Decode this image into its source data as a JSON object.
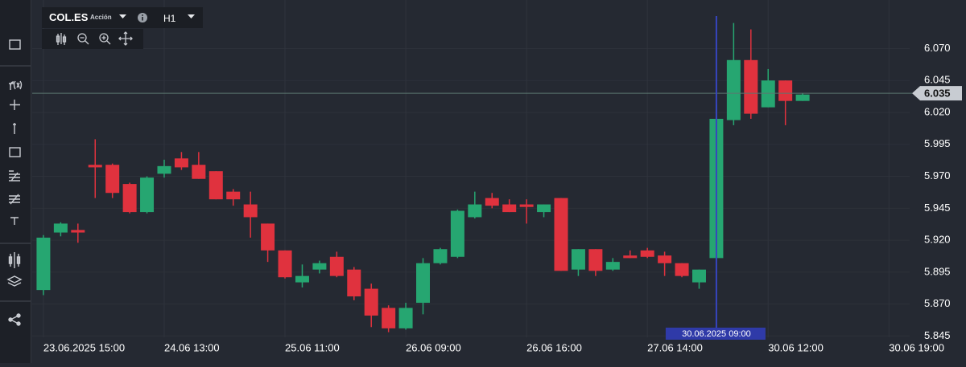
{
  "toolbar": {
    "symbol": "COL.ES",
    "asset_type": "Acción",
    "timeframe": "H1"
  },
  "chart_data": {
    "type": "candlestick",
    "open": [
      5.881,
      5.926,
      5.928,
      5.979,
      5.979,
      5.964,
      5.942,
      5.972,
      5.984,
      5.979,
      5.974,
      5.958,
      5.948,
      5.933,
      5.912,
      5.887,
      5.897,
      5.907,
      5.897,
      5.882,
      5.867,
      5.851,
      5.871,
      5.902,
      5.907,
      5.938,
      5.953,
      5.948,
      5.948,
      5.942,
      5.953,
      5.897,
      5.913,
      5.897,
      5.908,
      5.912,
      5.908,
      5.902,
      5.887,
      5.906,
      6.014,
      6.061,
      6.024,
      6.045,
      6.029
    ],
    "high": [
      5.924,
      5.934,
      5.933,
      5.999,
      5.98,
      5.965,
      5.97,
      5.983,
      5.989,
      5.989,
      5.974,
      5.96,
      5.958,
      5.933,
      5.912,
      5.901,
      5.904,
      5.911,
      5.899,
      5.886,
      5.869,
      5.871,
      5.906,
      5.914,
      5.944,
      5.958,
      5.957,
      5.952,
      5.952,
      5.948,
      5.953,
      5.913,
      5.913,
      5.906,
      5.912,
      5.914,
      5.911,
      5.902,
      5.897,
      6.026,
      6.09,
      6.085,
      6.054,
      6.045,
      6.035
    ],
    "low": [
      5.877,
      5.923,
      5.918,
      5.953,
      5.953,
      5.941,
      5.941,
      5.969,
      5.975,
      5.968,
      5.952,
      5.947,
      5.922,
      5.903,
      5.89,
      5.883,
      5.894,
      5.891,
      5.873,
      5.852,
      5.848,
      5.85,
      5.862,
      5.901,
      5.906,
      5.937,
      5.945,
      5.942,
      5.933,
      5.938,
      5.896,
      5.892,
      5.892,
      5.896,
      5.906,
      5.906,
      5.892,
      5.891,
      5.882,
      5.906,
      6.01,
      6.015,
      6.024,
      6.01,
      6.029
    ],
    "close": [
      5.922,
      5.933,
      5.926,
      5.977,
      5.957,
      5.942,
      5.969,
      5.978,
      5.977,
      5.968,
      5.952,
      5.952,
      5.938,
      5.912,
      5.891,
      5.892,
      5.902,
      5.892,
      5.876,
      5.861,
      5.851,
      5.867,
      5.902,
      5.913,
      5.943,
      5.948,
      5.947,
      5.942,
      5.946,
      5.948,
      5.896,
      5.913,
      5.896,
      5.903,
      5.906,
      5.907,
      5.902,
      5.892,
      5.897,
      6.015,
      6.061,
      6.019,
      6.045,
      6.029,
      6.034
    ],
    "up_color": "#26a671",
    "down_color": "#e0323e",
    "ylim": [
      5.844,
      6.108
    ],
    "yticks": [
      {
        "value": 5.845,
        "label": "5.845"
      },
      {
        "value": 5.87,
        "label": "5.870"
      },
      {
        "value": 5.895,
        "label": "5.895"
      },
      {
        "value": 5.92,
        "label": "5.920"
      },
      {
        "value": 5.945,
        "label": "5.945"
      },
      {
        "value": 5.97,
        "label": "5.970"
      },
      {
        "value": 5.995,
        "label": "5.995"
      },
      {
        "value": 6.02,
        "label": "6.020"
      },
      {
        "value": 6.045,
        "label": "6.045"
      },
      {
        "value": 6.07,
        "label": "6.070"
      }
    ],
    "xlim": [
      -0.65,
      50.2
    ],
    "xticks": [
      {
        "value": 0,
        "label": "23.06.2025 15:00"
      },
      {
        "value": 7,
        "label": "24.06 13:00"
      },
      {
        "value": 14,
        "label": "25.06 11:00"
      },
      {
        "value": 21,
        "label": "26.06 09:00"
      },
      {
        "value": 28,
        "label": "26.06 16:00"
      },
      {
        "value": 35,
        "label": "27.06 14:00"
      },
      {
        "value": 42,
        "label": "30.06 12:00"
      },
      {
        "value": 49,
        "label": "30.06 19:00"
      }
    ],
    "grid": true,
    "price_line": 6.035,
    "crosshair": {
      "x": 39,
      "label": "30.06.2025 09:00"
    }
  }
}
